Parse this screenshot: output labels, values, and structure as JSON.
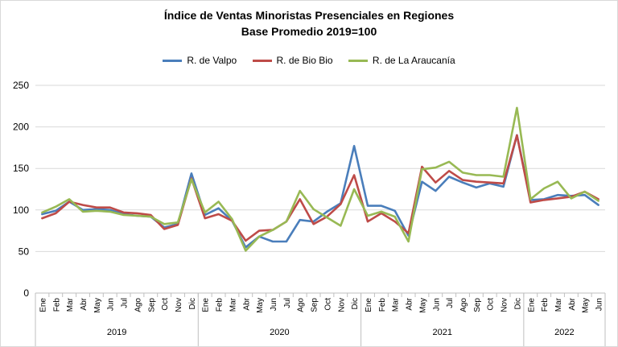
{
  "chart_data": {
    "type": "line",
    "title": "Índice de Ventas Minoristas Presenciales en Regiones",
    "subtitle": "Base Promedio 2019=100",
    "ylim": [
      0,
      250
    ],
    "yticks": [
      0,
      50,
      100,
      150,
      200,
      250
    ],
    "grid": true,
    "legend_position": "top",
    "months": [
      "Ene",
      "Feb",
      "Mar",
      "Abr",
      "May",
      "Jun",
      "Jul",
      "Ago",
      "Sep",
      "Oct",
      "Nov",
      "Dic",
      "Ene",
      "Feb",
      "Mar",
      "Abr",
      "May",
      "Jun",
      "Jul",
      "Ago",
      "Sep",
      "Oct",
      "Nov",
      "Dic",
      "Ene",
      "Feb",
      "Mar",
      "Abr",
      "May",
      "Jun",
      "Jul",
      "Ago",
      "Sep",
      "Oct",
      "Nov",
      "Dic",
      "Ene",
      "Feb",
      "Mar",
      "Abr",
      "May",
      "Jun"
    ],
    "years": [
      {
        "label": "2019",
        "count": 12
      },
      {
        "label": "2020",
        "count": 12
      },
      {
        "label": "2021",
        "count": 12
      },
      {
        "label": "2022",
        "count": 6
      }
    ],
    "series": [
      {
        "name": "R. de Valpo",
        "color": "#4a7ebb",
        "values": [
          95,
          99,
          110,
          100,
          101,
          100,
          95,
          93,
          92,
          79,
          83,
          144,
          94,
          102,
          87,
          55,
          68,
          62,
          62,
          88,
          86,
          98,
          108,
          177,
          105,
          105,
          99,
          69,
          134,
          123,
          140,
          133,
          127,
          132,
          128,
          190,
          112,
          113,
          118,
          117,
          118,
          106
        ]
      },
      {
        "name": "R. de Bio Bio",
        "color": "#be4b48",
        "values": [
          90,
          96,
          110,
          106,
          103,
          103,
          97,
          96,
          94,
          77,
          82,
          138,
          90,
          95,
          87,
          63,
          75,
          76,
          86,
          113,
          83,
          92,
          107,
          142,
          86,
          96,
          86,
          72,
          152,
          133,
          147,
          136,
          134,
          133,
          132,
          190,
          109,
          112,
          114,
          116,
          122,
          113
        ]
      },
      {
        "name": "R. de La Araucanía",
        "color": "#98b954",
        "values": [
          97,
          104,
          113,
          98,
          99,
          98,
          94,
          93,
          92,
          83,
          85,
          137,
          97,
          110,
          89,
          51,
          68,
          76,
          86,
          123,
          101,
          91,
          81,
          125,
          93,
          98,
          92,
          62,
          149,
          151,
          158,
          145,
          142,
          142,
          140,
          223,
          113,
          126,
          134,
          114,
          122,
          111
        ]
      }
    ]
  }
}
